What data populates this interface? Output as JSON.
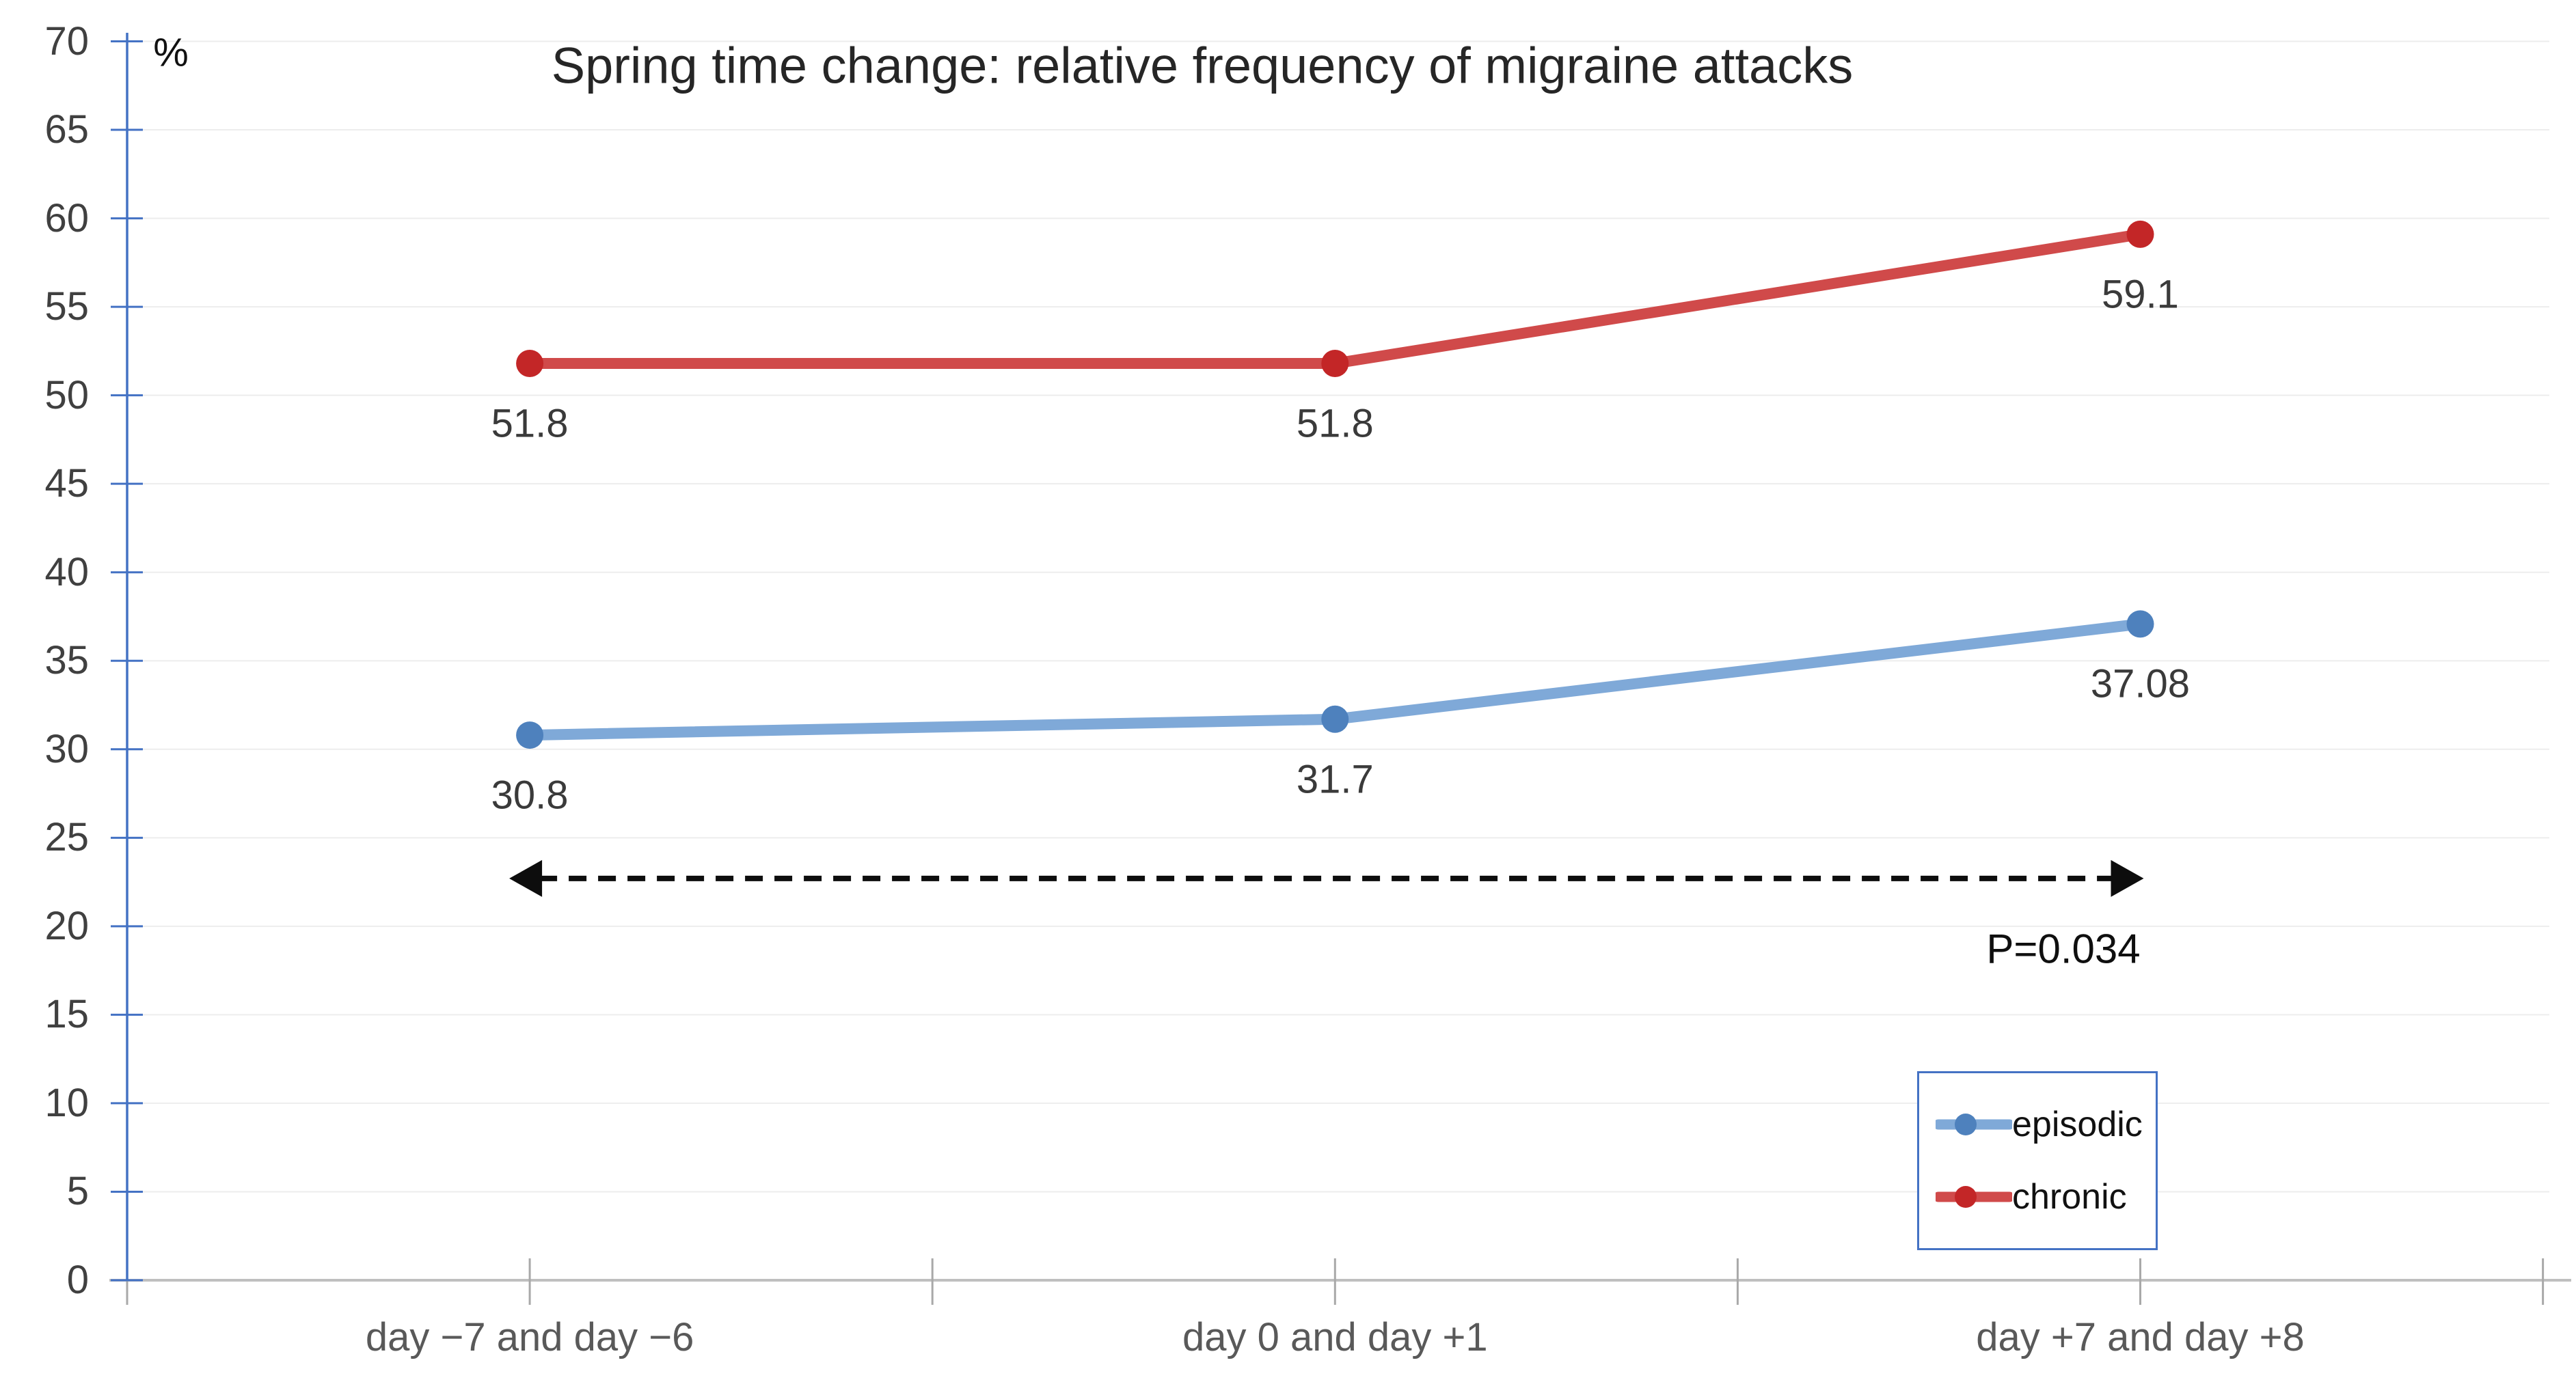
{
  "page": {
    "background": "#FFFFFF"
  },
  "chart_data": {
    "type": "line",
    "title": "Spring time change: relative frequency of migraine attacks",
    "y_axis": {
      "unit_label": "%",
      "min": 0,
      "max": 70,
      "step": 5,
      "ticks": [
        0,
        5,
        10,
        15,
        20,
        25,
        30,
        35,
        40,
        45,
        50,
        55,
        60,
        65,
        70
      ]
    },
    "x_axis": {
      "categories": [
        "day −7 and day −6",
        "day 0 and day +1",
        "day +7 and day +8"
      ]
    },
    "series": [
      {
        "name": "episodic",
        "values": [
          30.8,
          31.7,
          37.08
        ],
        "point_labels": [
          "30.8",
          "31.7",
          "37.08"
        ],
        "line_color": "#7FA9D8",
        "marker_color": "#4E81BD"
      },
      {
        "name": "chronic",
        "values": [
          51.8,
          51.8,
          59.1
        ],
        "point_labels": [
          "51.8",
          "51.8",
          "59.1"
        ],
        "line_color": "#D04A4A",
        "marker_color": "#C32627"
      }
    ],
    "annotation": {
      "label": "P=0.034",
      "y_value": 22.7,
      "spans_categories": [
        0,
        2
      ],
      "style": "dashed-double-arrow",
      "color": "#0D0D0D"
    },
    "legend": {
      "position": "bottom-right",
      "entries": [
        "episodic",
        "chronic"
      ],
      "border_color": "#4472C4"
    },
    "colors": {
      "y_axis": "#4472C4",
      "x_axis": "#BFBFBF",
      "x_tick": "#A9A9A9",
      "gridline": "#EDEDED",
      "tick_label": "#404040",
      "category_label": "#595959",
      "data_label": "#3A3A3A",
      "title": "#262626"
    },
    "grid": true,
    "ylim": [
      0,
      70
    ]
  }
}
